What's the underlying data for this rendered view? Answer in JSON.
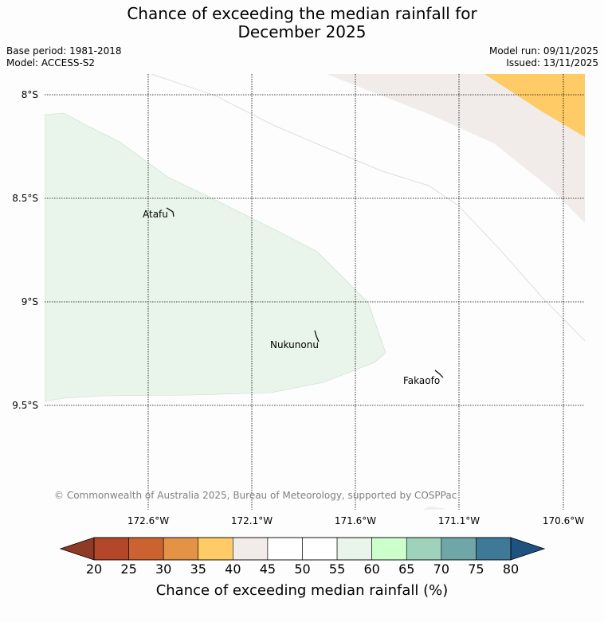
{
  "title": {
    "line1": "Chance of exceeding the median rainfall for",
    "line2": "December 2025"
  },
  "meta": {
    "base_period": "Base period: 1981-2018",
    "model": "Model: ACCESS-S2",
    "model_run": "Model run: 09/11/2025",
    "issued": "Issued: 13/11/2025"
  },
  "map": {
    "lat_ticks": [
      "8°S",
      "8.5°S",
      "9°S",
      "9.5°S"
    ],
    "lon_ticks": [
      "172.6°W",
      "172.1°W",
      "171.6°W",
      "171.1°W",
      "170.6°W"
    ],
    "places": [
      {
        "name": "Atafu"
      },
      {
        "name": "Nukunonu"
      },
      {
        "name": "Fakaofo"
      }
    ],
    "copyright": "© Commonwealth of Australia 2025, Bureau of Meteorology, supported by COSPPac",
    "regions": [
      {
        "category": "35-40",
        "color": "#fecb66"
      },
      {
        "category": "40-45",
        "color": "#f1ece9"
      },
      {
        "category": "55-60",
        "color": "#e9f5ea"
      }
    ]
  },
  "colorbar": {
    "label": "Chance of exceeding median rainfall (%)",
    "ticks": [
      "20",
      "25",
      "30",
      "35",
      "40",
      "45",
      "50",
      "55",
      "60",
      "65",
      "70",
      "75",
      "80"
    ],
    "colors": [
      "#b2472a",
      "#cb6331",
      "#e29346",
      "#fecb66",
      "#f1ece9",
      "#ffffff",
      "#ffffff",
      "#e9f5ea",
      "#ccffcc",
      "#9ed2bb",
      "#6fa6a8",
      "#3f7998"
    ],
    "under_color": "#8e3a24",
    "over_color": "#1e5281"
  },
  "colors": {
    "background": "#fcfdfc",
    "gridline": "#000000",
    "copyright_text": "#808080"
  }
}
